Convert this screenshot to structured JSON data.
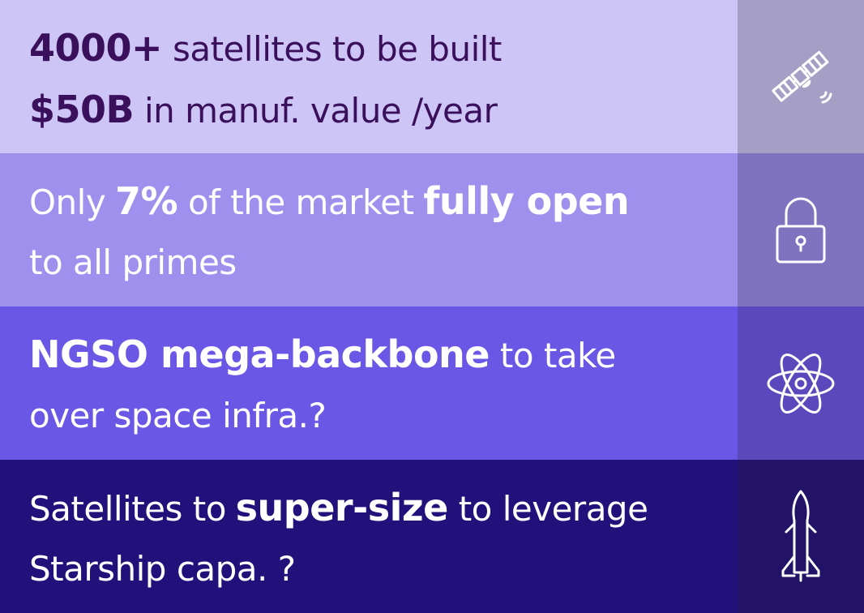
{
  "rows": [
    {
      "lines": [
        [
          {
            "text": "4000+",
            "bold": true
          },
          {
            "text": "satellites to be built",
            "bold": false
          }
        ],
        [
          {
            "text": "$50B",
            "bold": true
          },
          {
            "text": "in manuf. value /year",
            "bold": false
          }
        ]
      ]
    },
    {
      "lines": [
        [
          {
            "text": "Only",
            "bold": false
          },
          {
            "text": "7%",
            "bold": true
          },
          {
            "text": "of the market",
            "bold": false
          },
          {
            "text": "fully open",
            "bold": true
          }
        ],
        [
          {
            "text": "to all primes",
            "bold": false
          }
        ]
      ]
    },
    {
      "lines": [
        [
          {
            "text": "NGSO mega-backbone",
            "bold": true
          },
          {
            "text": "to take",
            "bold": false
          }
        ],
        [
          {
            "text": "over space infra.?",
            "bold": false
          }
        ]
      ]
    },
    {
      "lines": [
        [
          {
            "text": "Satellites to",
            "bold": false
          },
          {
            "text": "super-size",
            "bold": true
          },
          {
            "text": "to leverage",
            "bold": false
          }
        ],
        [
          {
            "text": "Starship capa. ?",
            "bold": false
          }
        ]
      ]
    }
  ]
}
